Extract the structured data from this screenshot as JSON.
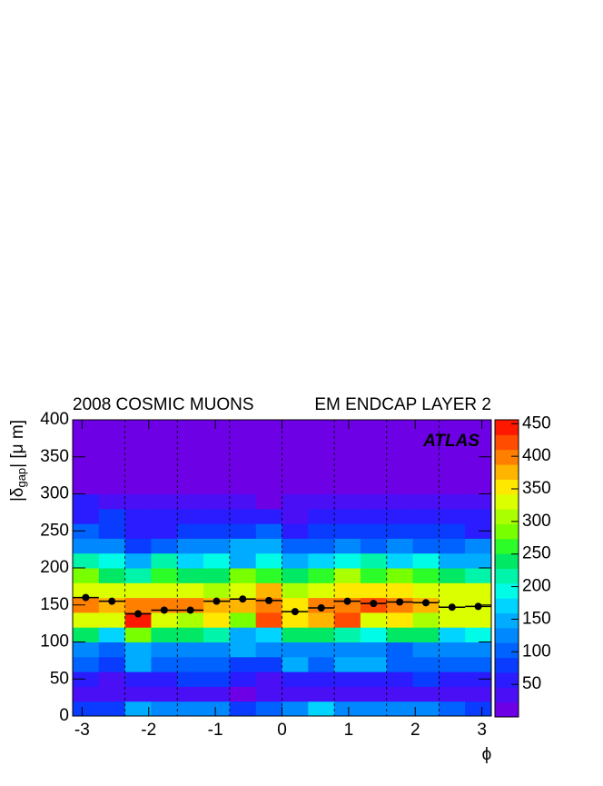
{
  "chart_data": {
    "type": "heatmap",
    "title_left": "2008 COSMIC MUONS",
    "title_right": "EM ENDCAP LAYER 2",
    "annotation": "ATLAS",
    "y_label": {
      "main": "|δ",
      "sub": "gap",
      "rest": "| [μ m]"
    },
    "x_label": "ϕ",
    "xlim": [
      -3.1416,
      3.1416
    ],
    "ylim": [
      0,
      400
    ],
    "xticks": [
      -3,
      -2,
      -1,
      0,
      1,
      2,
      3
    ],
    "yticks": [
      0,
      50,
      100,
      150,
      200,
      250,
      300,
      350,
      400
    ],
    "xbins": [
      -3.1416,
      -2.7489,
      -2.3562,
      -1.9635,
      -1.5708,
      -1.1781,
      -0.7854,
      -0.3927,
      0,
      0.3927,
      0.7854,
      1.1781,
      1.5708,
      1.9635,
      2.3562,
      2.7489,
      3.1416
    ],
    "ybins": [
      0,
      20,
      40,
      60,
      80,
      100,
      120,
      140,
      160,
      180,
      200,
      220,
      240,
      260,
      280,
      300,
      320,
      340,
      360,
      380,
      400
    ],
    "z": [
      [
        80,
        70,
        150,
        120,
        115,
        115,
        70,
        110,
        115,
        165,
        120,
        120,
        120,
        115,
        110,
        75
      ],
      [
        30,
        40,
        35,
        35,
        35,
        35,
        20,
        35,
        30,
        35,
        30,
        35,
        35,
        30,
        35,
        40
      ],
      [
        50,
        40,
        60,
        60,
        70,
        70,
        60,
        40,
        50,
        60,
        60,
        55,
        60,
        70,
        55,
        55
      ],
      [
        110,
        90,
        140,
        110,
        110,
        100,
        90,
        90,
        150,
        100,
        150,
        150,
        110,
        100,
        110,
        95
      ],
      [
        130,
        110,
        145,
        125,
        120,
        115,
        140,
        125,
        135,
        115,
        130,
        125,
        110,
        130,
        135,
        120
      ],
      [
        230,
        180,
        280,
        240,
        240,
        220,
        150,
        170,
        250,
        230,
        220,
        200,
        230,
        250,
        170,
        190
      ],
      [
        330,
        340,
        440,
        330,
        300,
        350,
        290,
        430,
        350,
        380,
        430,
        330,
        350,
        310,
        340,
        330
      ],
      [
        400,
        380,
        400,
        390,
        390,
        370,
        380,
        390,
        360,
        400,
        390,
        420,
        410,
        370,
        340,
        320
      ],
      [
        340,
        330,
        320,
        330,
        340,
        310,
        340,
        380,
        310,
        340,
        360,
        360,
        350,
        320,
        340,
        330
      ],
      [
        290,
        250,
        220,
        260,
        250,
        240,
        280,
        260,
        250,
        260,
        310,
        260,
        280,
        260,
        230,
        220
      ],
      [
        220,
        190,
        150,
        210,
        160,
        190,
        150,
        200,
        140,
        180,
        190,
        220,
        160,
        200,
        140,
        150
      ],
      [
        130,
        120,
        90,
        110,
        120,
        130,
        150,
        140,
        110,
        100,
        120,
        110,
        120,
        110,
        110,
        120
      ],
      [
        100,
        80,
        60,
        60,
        70,
        80,
        90,
        110,
        60,
        80,
        70,
        80,
        80,
        80,
        70,
        60
      ],
      [
        60,
        70,
        50,
        50,
        60,
        50,
        50,
        50,
        40,
        50,
        60,
        55,
        60,
        50,
        50,
        60
      ],
      [
        50,
        45,
        25,
        25,
        45,
        40,
        40,
        20,
        35,
        40,
        35,
        40,
        40,
        40,
        40,
        25
      ],
      [
        15,
        14,
        12,
        12,
        14,
        13,
        14,
        12,
        13,
        14,
        13,
        12,
        13,
        14,
        13,
        12
      ],
      [
        12,
        11,
        11,
        10,
        12,
        11,
        12,
        10,
        11,
        12,
        11,
        10,
        11,
        12,
        11,
        10
      ],
      [
        10,
        10,
        9,
        9,
        10,
        10,
        10,
        9,
        9,
        10,
        10,
        9,
        10,
        10,
        9,
        9
      ],
      [
        8,
        8,
        8,
        8,
        8,
        8,
        8,
        8,
        8,
        8,
        8,
        8,
        8,
        8,
        8,
        8
      ],
      [
        6,
        6,
        6,
        6,
        6,
        6,
        6,
        6,
        6,
        6,
        6,
        6,
        6,
        6,
        6,
        6
      ]
    ],
    "zlim": [
      0,
      456
    ],
    "zticks": [
      50,
      100,
      150,
      200,
      250,
      300,
      350,
      400,
      450
    ],
    "palette": [
      "#6e00e6",
      "#4a0ff5",
      "#2a1cff",
      "#0a3cff",
      "#0062ff",
      "#0088ff",
      "#00acff",
      "#00d4ff",
      "#00fce6",
      "#00f5aa",
      "#00e864",
      "#2cfc28",
      "#78ff00",
      "#aaff00",
      "#dcff00",
      "#ffe800",
      "#ffb400",
      "#ff8000",
      "#ff4c00",
      "#ff1800"
    ],
    "profile": {
      "values": [
        160,
        155,
        138,
        143,
        143,
        155,
        158,
        156,
        141,
        146,
        155,
        152,
        154,
        153,
        147,
        148
      ],
      "color": "#000000"
    },
    "grid": "dashed"
  }
}
